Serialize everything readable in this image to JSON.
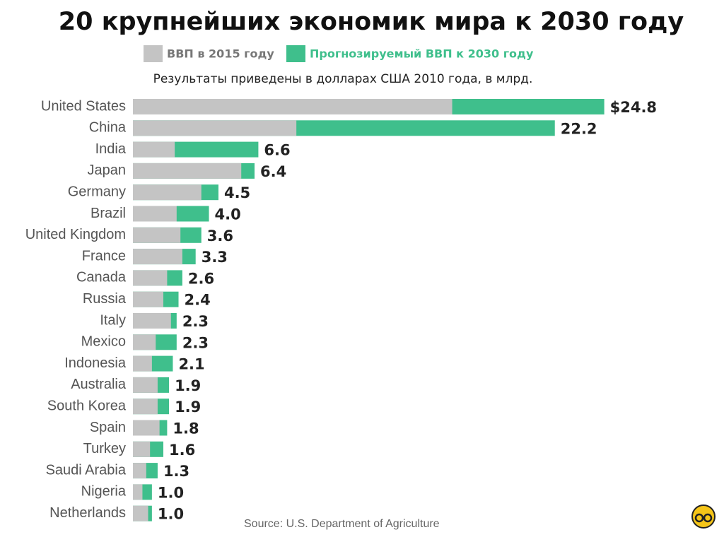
{
  "chart_data": {
    "type": "bar",
    "orientation": "horizontal",
    "overlap": true,
    "title": "20 крупнейших экономик мира к 2030 году",
    "subtitle": "Результаты приведены в долларах США 2010 года, в млрд.",
    "source": "Source: U.S. Department of Agriculture",
    "categories": [
      "United States",
      "China",
      "India",
      "Japan",
      "Germany",
      "Brazil",
      "United Kingdom",
      "France",
      "Canada",
      "Russia",
      "Italy",
      "Mexico",
      "Indonesia",
      "Australia",
      "South Korea",
      "Spain",
      "Turkey",
      "Saudi Arabia",
      "Nigeria",
      "Netherlands"
    ],
    "series": [
      {
        "name": "ВВП в 2015 году",
        "color": "#c4c4c4",
        "values": [
          16.8,
          8.6,
          2.2,
          5.7,
          3.6,
          2.3,
          2.5,
          2.6,
          1.8,
          1.6,
          2.0,
          1.2,
          1.0,
          1.3,
          1.3,
          1.4,
          0.9,
          0.7,
          0.5,
          0.8
        ]
      },
      {
        "name": "Прогнозируемый ВВП к 2030 году",
        "color": "#3fbf8c",
        "values": [
          24.8,
          22.2,
          6.6,
          6.4,
          4.5,
          4.0,
          3.6,
          3.3,
          2.6,
          2.4,
          2.3,
          2.3,
          2.1,
          1.9,
          1.9,
          1.8,
          1.6,
          1.3,
          1.0,
          1.0
        ],
        "value_labels": [
          "$24.8",
          "22.2",
          "6.6",
          "6.4",
          "4.5",
          "4.0",
          "3.6",
          "3.3",
          "2.6",
          "2.4",
          "2.3",
          "2.3",
          "2.1",
          "1.9",
          "1.9",
          "1.8",
          "1.6",
          "1.3",
          "1.0",
          "1.0"
        ]
      }
    ],
    "xlim": [
      0,
      25
    ]
  }
}
